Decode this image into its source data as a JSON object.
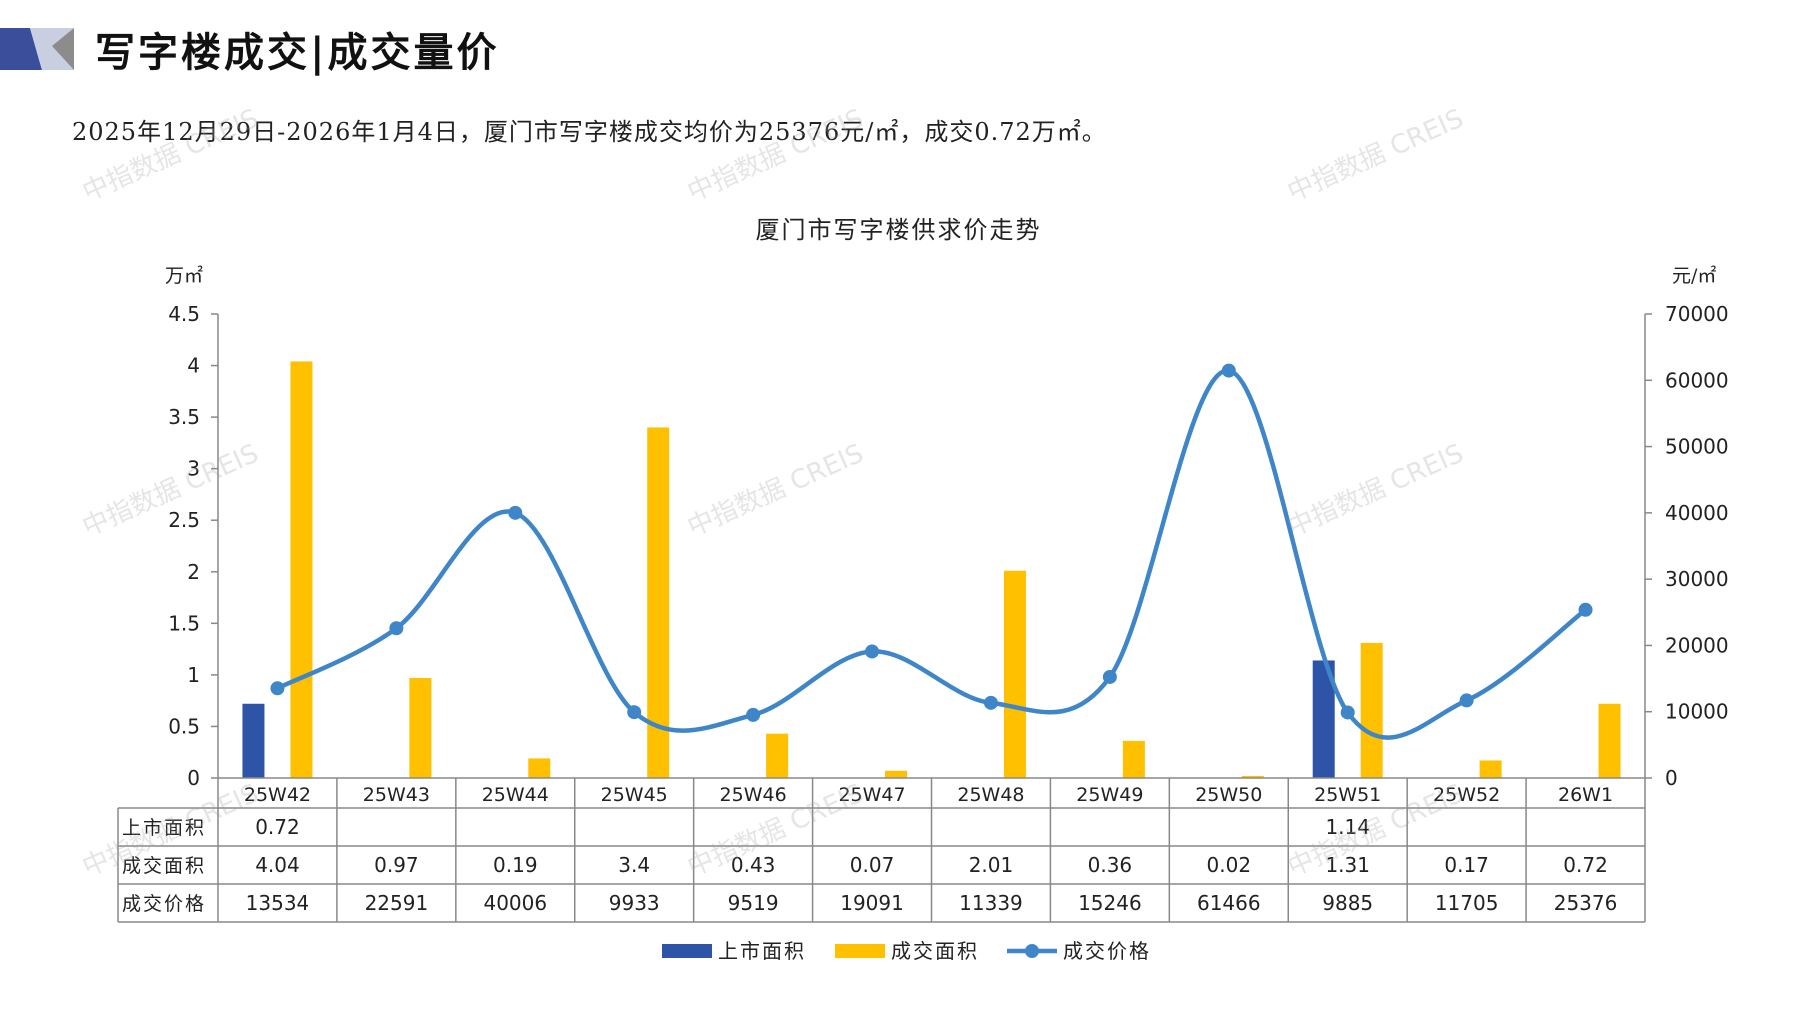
{
  "header": {
    "title": "写字楼成交|成交量价",
    "summary": "2025年12月29日-2026年1月4日，厦门市写字楼成交均价为25376元/㎡，成交0.72万㎡。"
  },
  "watermark_text": "中指数据 CREIS",
  "colors": {
    "supply": "#2E54A8",
    "deal_area": "#FFC000",
    "deal_price": "#3F86C8",
    "logo_dark": "#3A4E9C",
    "logo_light": "#C9CFE0"
  },
  "chart_data": {
    "type": "bar",
    "title": "厦门市写字楼供求价走势",
    "left_unit": "万㎡",
    "right_unit": "元/㎡",
    "categories": [
      "25W42",
      "25W43",
      "25W44",
      "25W45",
      "25W46",
      "25W47",
      "25W48",
      "25W49",
      "25W50",
      "25W51",
      "25W52",
      "26W1"
    ],
    "ylim_left": [
      0,
      4.5
    ],
    "ylim_right": [
      0,
      70000
    ],
    "yticks_left": [
      "0",
      "0.5",
      "1",
      "1.5",
      "2",
      "2.5",
      "3",
      "3.5",
      "4",
      "4.5"
    ],
    "yticks_right": [
      "0",
      "10000",
      "20000",
      "30000",
      "40000",
      "50000",
      "60000",
      "70000"
    ],
    "series": [
      {
        "name": "上市面积",
        "type": "bar",
        "axis": "left",
        "values": [
          0.72,
          null,
          null,
          null,
          null,
          null,
          null,
          null,
          null,
          1.14,
          null,
          null
        ]
      },
      {
        "name": "成交面积",
        "type": "bar",
        "axis": "left",
        "values": [
          4.04,
          0.97,
          0.19,
          3.4,
          0.43,
          0.07,
          2.01,
          0.36,
          0.02,
          1.31,
          0.17,
          0.72
        ]
      },
      {
        "name": "成交价格",
        "type": "line",
        "axis": "right",
        "values": [
          13534,
          22591,
          40006,
          9933,
          9519,
          19091,
          11339,
          15246,
          61466,
          9885,
          11705,
          25376
        ]
      }
    ],
    "table": {
      "rows": [
        {
          "label": "上市面积",
          "cells": [
            "0.72",
            "",
            "",
            "",
            "",
            "",
            "",
            "",
            "",
            "1.14",
            "",
            ""
          ]
        },
        {
          "label": "成交面积",
          "cells": [
            "4.04",
            "0.97",
            "0.19",
            "3.4",
            "0.43",
            "0.07",
            "2.01",
            "0.36",
            "0.02",
            "1.31",
            "0.17",
            "0.72"
          ]
        },
        {
          "label": "成交价格",
          "cells": [
            "13534",
            "22591",
            "40006",
            "9933",
            "9519",
            "19091",
            "11339",
            "15246",
            "61466",
            "9885",
            "11705",
            "25376"
          ]
        }
      ]
    },
    "legend_position": "bottom",
    "grid": false
  }
}
